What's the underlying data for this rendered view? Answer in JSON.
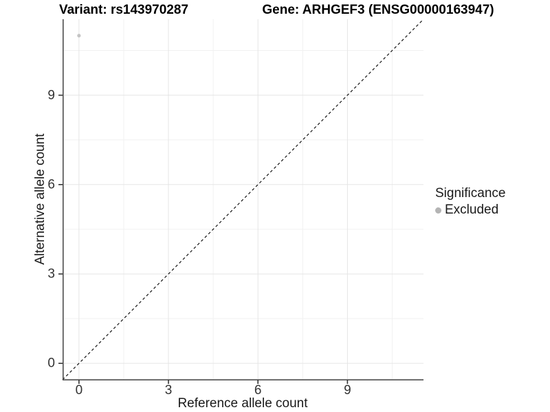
{
  "chart_data": {
    "type": "scatter",
    "titles": {
      "left": "Variant: rs143970287",
      "right": "Gene: ARHGEF3 (ENSG00000163947)"
    },
    "xlabel": "Reference allele count",
    "ylabel": "Alternative allele count",
    "xlim": [
      -0.55,
      11.55
    ],
    "ylim": [
      -0.55,
      11.55
    ],
    "x_ticks": [
      0,
      3,
      6,
      9
    ],
    "y_ticks": [
      0,
      3,
      6,
      9
    ],
    "x_minor": [
      1.5,
      4.5,
      7.5,
      10.5
    ],
    "y_minor": [
      1.5,
      4.5,
      7.5,
      10.5
    ],
    "grid": true,
    "points": [
      {
        "x": 0,
        "y": 11,
        "series": "Excluded"
      }
    ],
    "identity_line": {
      "style": "dashed",
      "from": [
        -0.55,
        -0.55
      ],
      "to": [
        11.55,
        11.55
      ],
      "color": "#111111"
    },
    "legend": {
      "title": "Significance",
      "position": "right",
      "items": [
        {
          "label": "Excluded",
          "color": "#b4b4b4"
        }
      ]
    },
    "colors": {
      "point": "#c4c4c4",
      "grid_major": "#e5e5e5",
      "grid_minor": "#f1f1f1",
      "axis_line": "#4d4d4d",
      "tick_mark": "#333333"
    }
  }
}
